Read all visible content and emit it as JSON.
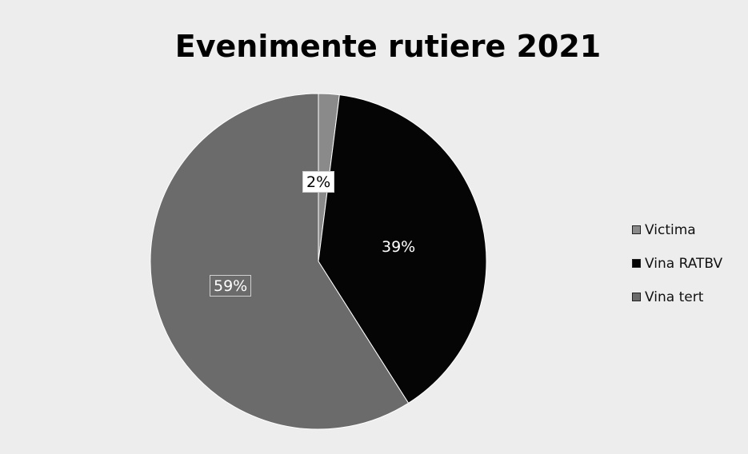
{
  "chart_data": {
    "type": "pie",
    "title": "Evenimente rutiere 2021",
    "categories": [
      "Victima",
      "Vina RATBV",
      "Vina tert"
    ],
    "values": [
      2,
      39,
      59
    ],
    "data_labels": [
      "2%",
      "39%",
      "59%"
    ],
    "colors": [
      "#8a8a8a",
      "#050505",
      "#6b6b6b"
    ],
    "legend_position": "right",
    "start_angle_deg": 0,
    "direction": "clockwise"
  }
}
